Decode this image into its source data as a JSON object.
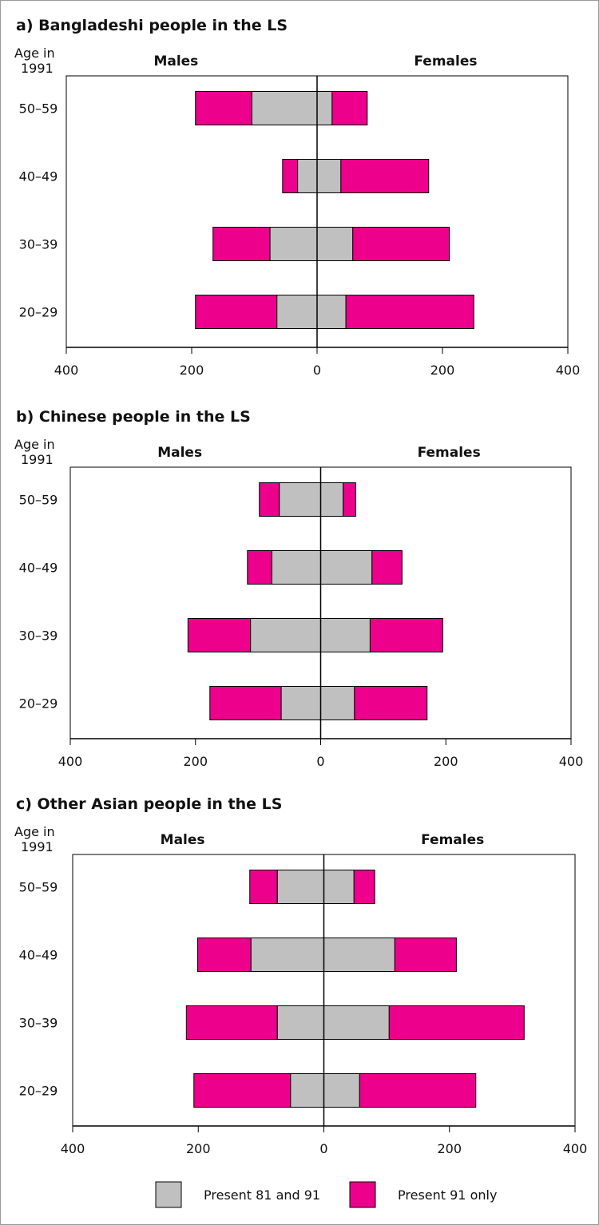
{
  "colors": {
    "both": "#c0c0c0",
    "only91": "#ec008c",
    "axis": "#000000"
  },
  "legend": [
    {
      "key": "both",
      "label": "Present 81 and 91"
    },
    {
      "key": "only91",
      "label": "Present 91 only"
    }
  ],
  "chart_data": [
    {
      "type": "bar",
      "title": "a)  Bangladeshi people in the LS",
      "ylabel": "Age in 1991",
      "left_label": "Males",
      "right_label": "Females",
      "categories": [
        "50–59",
        "40–49",
        "30–39",
        "20–29"
      ],
      "xlim": [
        -400,
        400
      ],
      "xticks": [
        "400",
        "200",
        "0",
        "200",
        "400"
      ],
      "series": [
        {
          "name": "Males present 81 and 91",
          "values": [
            104,
            31,
            75,
            64
          ]
        },
        {
          "name": "Males present 91 only",
          "values": [
            90,
            24,
            91,
            130
          ]
        },
        {
          "name": "Females present 81 and 91",
          "values": [
            24,
            38,
            57,
            46
          ]
        },
        {
          "name": "Females present 91 only",
          "values": [
            56,
            140,
            154,
            204
          ]
        }
      ]
    },
    {
      "type": "bar",
      "title": "b)  Chinese people in the LS",
      "ylabel": "Age in 1991",
      "left_label": "Males",
      "right_label": "Females",
      "categories": [
        "50–59",
        "40–49",
        "30–39",
        "20–29"
      ],
      "xlim": [
        -400,
        400
      ],
      "xticks": [
        "400",
        "200",
        "0",
        "200",
        "400"
      ],
      "series": [
        {
          "name": "Males present 81 and 91",
          "values": [
            66,
            78,
            112,
            63
          ]
        },
        {
          "name": "Males present 91 only",
          "values": [
            32,
            39,
            100,
            114
          ]
        },
        {
          "name": "Females present 81 and 91",
          "values": [
            36,
            82,
            79,
            54
          ]
        },
        {
          "name": "Females present 91 only",
          "values": [
            20,
            48,
            116,
            116
          ]
        }
      ]
    },
    {
      "type": "bar",
      "title": "c)  Other Asian people in the LS",
      "ylabel": "Age in 1991",
      "left_label": "Males",
      "right_label": "Females",
      "categories": [
        "50–59",
        "40–49",
        "30–39",
        "20–29"
      ],
      "xlim": [
        -400,
        400
      ],
      "xticks": [
        "400",
        "200",
        "0",
        "200",
        "400"
      ],
      "series": [
        {
          "name": "Males present 81 and 91",
          "values": [
            74,
            116,
            74,
            53
          ]
        },
        {
          "name": "Males present 91 only",
          "values": [
            44,
            85,
            145,
            154
          ]
        },
        {
          "name": "Females present 81 and 91",
          "values": [
            48,
            113,
            104,
            57
          ]
        },
        {
          "name": "Females present 91 only",
          "values": [
            33,
            98,
            215,
            185
          ]
        }
      ]
    }
  ]
}
